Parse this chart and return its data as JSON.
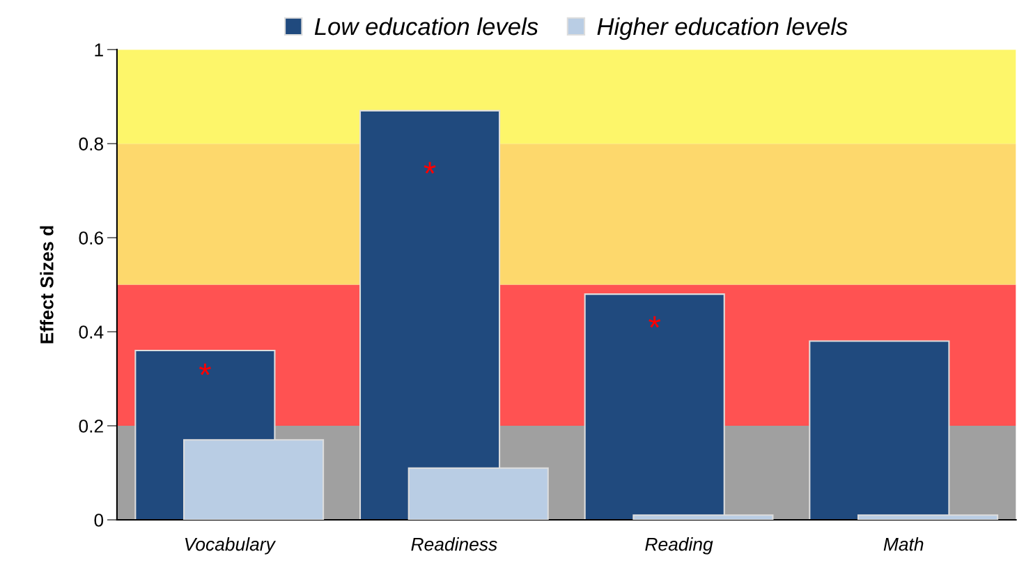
{
  "chart_data": {
    "type": "bar",
    "ylabel": "Effect Sizes d",
    "categories": [
      "Vocabulary",
      "Readiness",
      "Reading",
      "Math"
    ],
    "series": [
      {
        "name": "Low education levels",
        "color": "#204a7e",
        "values": [
          0.36,
          0.87,
          0.48,
          0.38
        ]
      },
      {
        "name": "Higher education levels",
        "color": "#b9cde4",
        "values": [
          0.17,
          0.11,
          0.01,
          0.01
        ]
      }
    ],
    "ylim": [
      0,
      1
    ],
    "yticks": [
      0,
      0.2,
      0.4,
      0.6,
      0.8,
      1
    ],
    "bands": [
      {
        "axis": "y",
        "from": 0,
        "to": 0.2,
        "color": "#a0a0a0"
      },
      {
        "axis": "y",
        "from": 0.2,
        "to": 0.5,
        "color": "#ff5252"
      },
      {
        "axis": "y",
        "from": 0.5,
        "to": 0.8,
        "color": "#fdd86c"
      },
      {
        "axis": "y",
        "from": 0.8,
        "to": 1,
        "color": "#fdf66a"
      }
    ],
    "annotations": [
      "*",
      "*",
      "*"
    ],
    "legend": "top",
    "grid": false
  }
}
